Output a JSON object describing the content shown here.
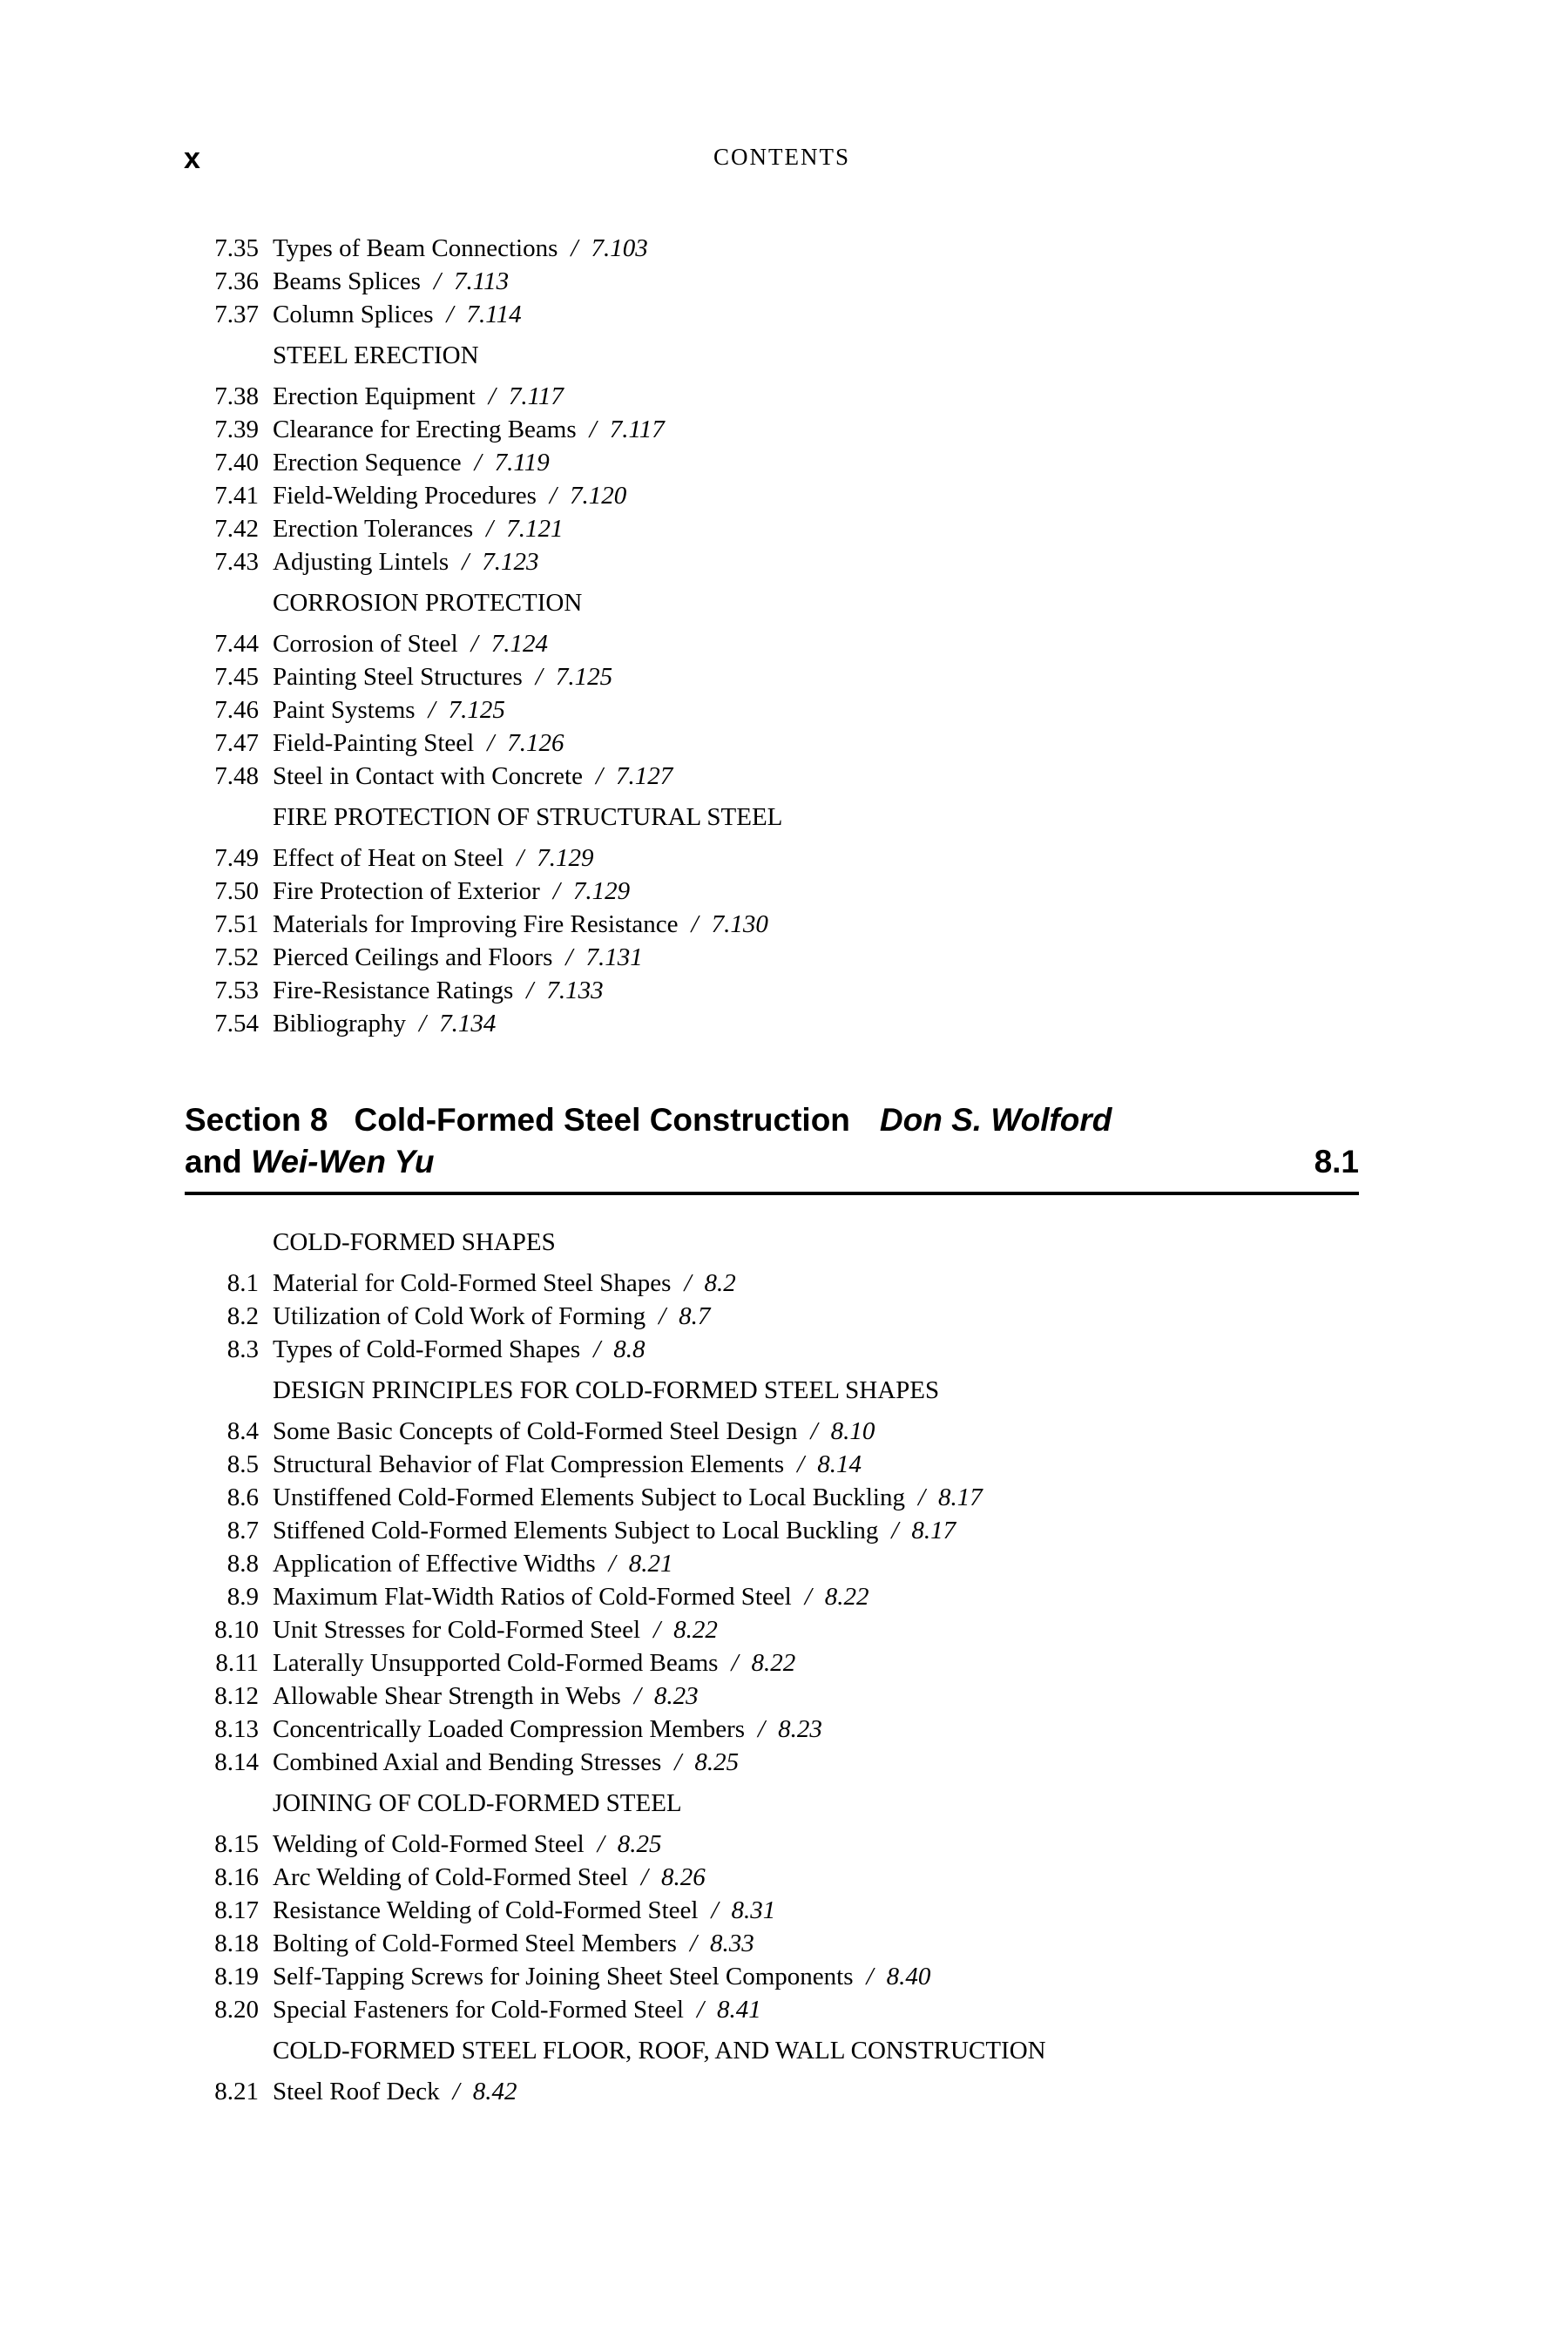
{
  "page": {
    "folio": "x",
    "running_title": "CONTENTS"
  },
  "toc": {
    "separator": "/"
  },
  "part7": {
    "rows": [
      {
        "kind": "entry",
        "num": "7.35",
        "title": "Types of Beam Connections",
        "page": "7.103"
      },
      {
        "kind": "entry",
        "num": "7.36",
        "title": "Beams Splices",
        "page": "7.113"
      },
      {
        "kind": "entry",
        "num": "7.37",
        "title": "Column Splices",
        "page": "7.114"
      },
      {
        "kind": "subhead",
        "text": "STEEL ERECTION"
      },
      {
        "kind": "entry",
        "num": "7.38",
        "title": "Erection Equipment",
        "page": "7.117"
      },
      {
        "kind": "entry",
        "num": "7.39",
        "title": "Clearance for Erecting Beams",
        "page": "7.117"
      },
      {
        "kind": "entry",
        "num": "7.40",
        "title": "Erection Sequence",
        "page": "7.119"
      },
      {
        "kind": "entry",
        "num": "7.41",
        "title": "Field-Welding Procedures",
        "page": "7.120"
      },
      {
        "kind": "entry",
        "num": "7.42",
        "title": "Erection Tolerances",
        "page": "7.121"
      },
      {
        "kind": "entry",
        "num": "7.43",
        "title": "Adjusting Lintels",
        "page": "7.123"
      },
      {
        "kind": "subhead",
        "text": "CORROSION PROTECTION"
      },
      {
        "kind": "entry",
        "num": "7.44",
        "title": "Corrosion of Steel",
        "page": "7.124"
      },
      {
        "kind": "entry",
        "num": "7.45",
        "title": "Painting Steel Structures",
        "page": "7.125"
      },
      {
        "kind": "entry",
        "num": "7.46",
        "title": "Paint Systems",
        "page": "7.125"
      },
      {
        "kind": "entry",
        "num": "7.47",
        "title": "Field-Painting Steel",
        "page": "7.126"
      },
      {
        "kind": "entry",
        "num": "7.48",
        "title": "Steel in Contact with Concrete",
        "page": "7.127"
      },
      {
        "kind": "subhead",
        "text": "FIRE PROTECTION OF STRUCTURAL STEEL"
      },
      {
        "kind": "entry",
        "num": "7.49",
        "title": "Effect of Heat on Steel",
        "page": "7.129"
      },
      {
        "kind": "entry",
        "num": "7.50",
        "title": "Fire Protection of Exterior",
        "page": "7.129"
      },
      {
        "kind": "entry",
        "num": "7.51",
        "title": "Materials for Improving Fire Resistance",
        "page": "7.130"
      },
      {
        "kind": "entry",
        "num": "7.52",
        "title": "Pierced Ceilings and Floors",
        "page": "7.131"
      },
      {
        "kind": "entry",
        "num": "7.53",
        "title": "Fire-Resistance Ratings",
        "page": "7.133"
      },
      {
        "kind": "entry",
        "num": "7.54",
        "title": "Bibliography",
        "page": "7.134"
      }
    ]
  },
  "section8": {
    "heading": {
      "label": "Section 8",
      "title": "Cold-Formed Steel Construction",
      "author1": "Don S. Wolford",
      "conjunction": "and",
      "author2": "Wei-Wen Yu",
      "page": "8.1"
    },
    "rows": [
      {
        "kind": "subhead",
        "text": "COLD-FORMED SHAPES"
      },
      {
        "kind": "entry",
        "num": "8.1",
        "title": "Material for Cold-Formed Steel Shapes",
        "page": "8.2"
      },
      {
        "kind": "entry",
        "num": "8.2",
        "title": "Utilization of Cold Work of Forming",
        "page": "8.7"
      },
      {
        "kind": "entry",
        "num": "8.3",
        "title": "Types of Cold-Formed Shapes",
        "page": "8.8"
      },
      {
        "kind": "subhead",
        "text": "DESIGN PRINCIPLES FOR COLD-FORMED STEEL SHAPES"
      },
      {
        "kind": "entry",
        "num": "8.4",
        "title": "Some Basic Concepts of Cold-Formed Steel Design",
        "page": "8.10"
      },
      {
        "kind": "entry",
        "num": "8.5",
        "title": "Structural Behavior of Flat Compression Elements",
        "page": "8.14"
      },
      {
        "kind": "entry",
        "num": "8.6",
        "title": "Unstiffened Cold-Formed Elements Subject to Local Buckling",
        "page": "8.17"
      },
      {
        "kind": "entry",
        "num": "8.7",
        "title": "Stiffened Cold-Formed Elements Subject to Local Buckling",
        "page": "8.17"
      },
      {
        "kind": "entry",
        "num": "8.8",
        "title": "Application of Effective Widths",
        "page": "8.21"
      },
      {
        "kind": "entry",
        "num": "8.9",
        "title": "Maximum Flat-Width Ratios of Cold-Formed Steel",
        "page": "8.22"
      },
      {
        "kind": "entry",
        "num": "8.10",
        "title": "Unit Stresses for Cold-Formed Steel",
        "page": "8.22"
      },
      {
        "kind": "entry",
        "num": "8.11",
        "title": "Laterally Unsupported Cold-Formed Beams",
        "page": "8.22"
      },
      {
        "kind": "entry",
        "num": "8.12",
        "title": "Allowable Shear Strength in Webs",
        "page": "8.23"
      },
      {
        "kind": "entry",
        "num": "8.13",
        "title": "Concentrically Loaded Compression Members",
        "page": "8.23"
      },
      {
        "kind": "entry",
        "num": "8.14",
        "title": "Combined Axial and Bending Stresses",
        "page": "8.25"
      },
      {
        "kind": "subhead",
        "text": "JOINING OF COLD-FORMED STEEL"
      },
      {
        "kind": "entry",
        "num": "8.15",
        "title": "Welding of Cold-Formed Steel",
        "page": "8.25"
      },
      {
        "kind": "entry",
        "num": "8.16",
        "title": "Arc Welding of Cold-Formed Steel",
        "page": "8.26"
      },
      {
        "kind": "entry",
        "num": "8.17",
        "title": "Resistance Welding of Cold-Formed Steel",
        "page": "8.31"
      },
      {
        "kind": "entry",
        "num": "8.18",
        "title": "Bolting of Cold-Formed Steel Members",
        "page": "8.33"
      },
      {
        "kind": "entry",
        "num": "8.19",
        "title": "Self-Tapping Screws for Joining Sheet Steel Components",
        "page": "8.40"
      },
      {
        "kind": "entry",
        "num": "8.20",
        "title": "Special Fasteners for Cold-Formed Steel",
        "page": "8.41"
      },
      {
        "kind": "subhead",
        "text": "COLD-FORMED STEEL FLOOR, ROOF, AND WALL CONSTRUCTION"
      },
      {
        "kind": "entry",
        "num": "8.21",
        "title": "Steel Roof Deck",
        "page": "8.42"
      }
    ]
  }
}
